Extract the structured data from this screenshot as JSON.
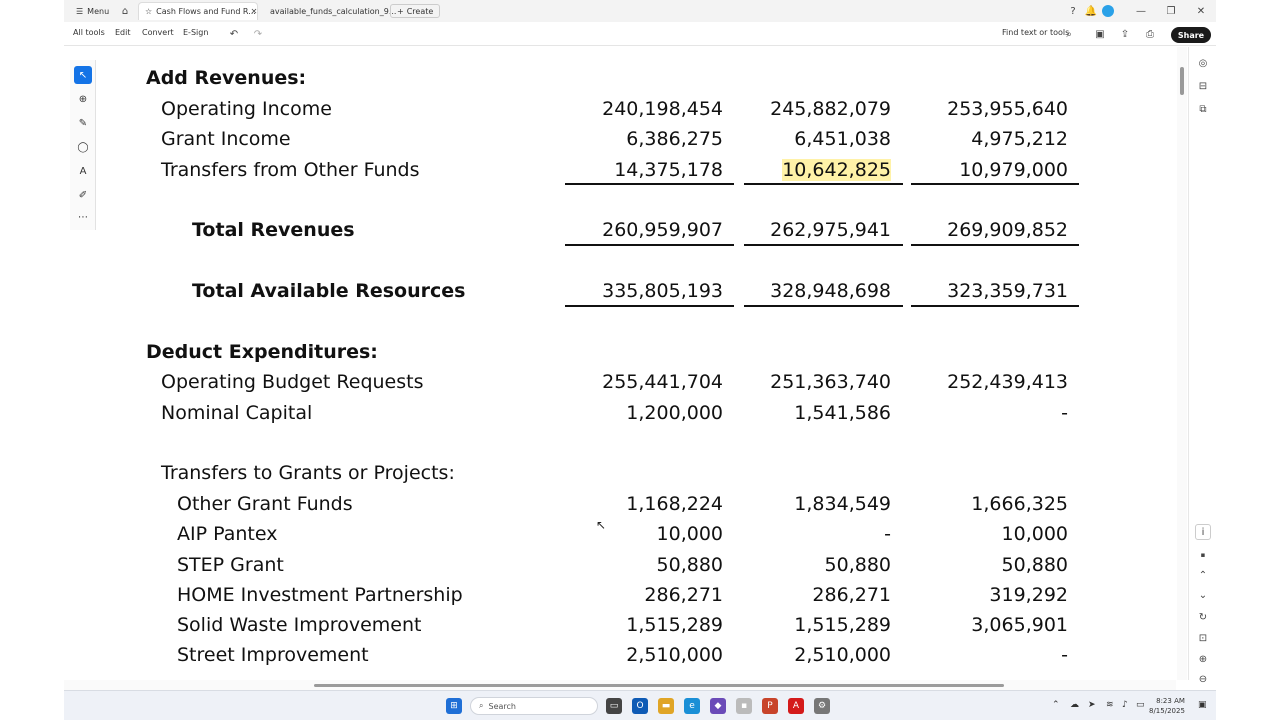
{
  "tabs": [
    {
      "label": "Menu"
    },
    {
      "label": "Cash Flows and Fund R..."
    },
    {
      "label": "available_funds_calculation_9..."
    },
    {
      "label": "Create"
    }
  ],
  "toolbar": {
    "items": [
      "All tools",
      "Edit",
      "Convert",
      "E-Sign"
    ],
    "find_label": "Find text or tools",
    "share_label": "Share"
  },
  "document": {
    "sections": [
      {
        "label": "Add Revenues:"
      },
      {
        "label": "Deduct Expenditures:"
      }
    ],
    "rows": [
      {
        "label": "Operating Income",
        "v1": "240,198,454",
        "v2": "245,882,079",
        "v3": "253,955,640"
      },
      {
        "label": "Grant Income",
        "v1": "6,386,275",
        "v2": "6,451,038",
        "v3": "4,975,212"
      },
      {
        "label": "Transfers from Other Funds",
        "v1": "14,375,178",
        "v2": "10,642,825",
        "v3": "10,979,000"
      },
      {
        "label": "Total Revenues",
        "v1": "260,959,907",
        "v2": "262,975,941",
        "v3": "269,909,852"
      },
      {
        "label": "Total Available Resources",
        "v1": "335,805,193",
        "v2": "328,948,698",
        "v3": "323,359,731"
      },
      {
        "label": "Operating Budget Requests",
        "v1": "255,441,704",
        "v2": "251,363,740",
        "v3": "252,439,413"
      },
      {
        "label": "Nominal Capital",
        "v1": "1,200,000",
        "v2": "1,541,586",
        "v3": "-"
      },
      {
        "label": "Transfers to Grants or Projects:"
      },
      {
        "label": "Other Grant Funds",
        "v1": "1,168,224",
        "v2": "1,834,549",
        "v3": "1,666,325"
      },
      {
        "label": "AIP Pantex",
        "v1": "10,000",
        "v2": "-",
        "v3": "10,000"
      },
      {
        "label": "STEP Grant",
        "v1": "50,880",
        "v2": "50,880",
        "v3": "50,880"
      },
      {
        "label": "HOME Investment Partnership",
        "v1": "286,271",
        "v2": "286,271",
        "v3": "319,292"
      },
      {
        "label": "Solid Waste Improvement",
        "v1": "1,515,289",
        "v2": "1,515,289",
        "v3": "3,065,901"
      },
      {
        "label": "Street Improvement",
        "v1": "2,510,000",
        "v2": "2,510,000",
        "v3": "-"
      }
    ]
  },
  "taskbar": {
    "search_placeholder": "Search",
    "time": "8:23 AM",
    "date": "8/15/2025"
  },
  "accent": "#1473e6",
  "highlight": "#fff2a8"
}
